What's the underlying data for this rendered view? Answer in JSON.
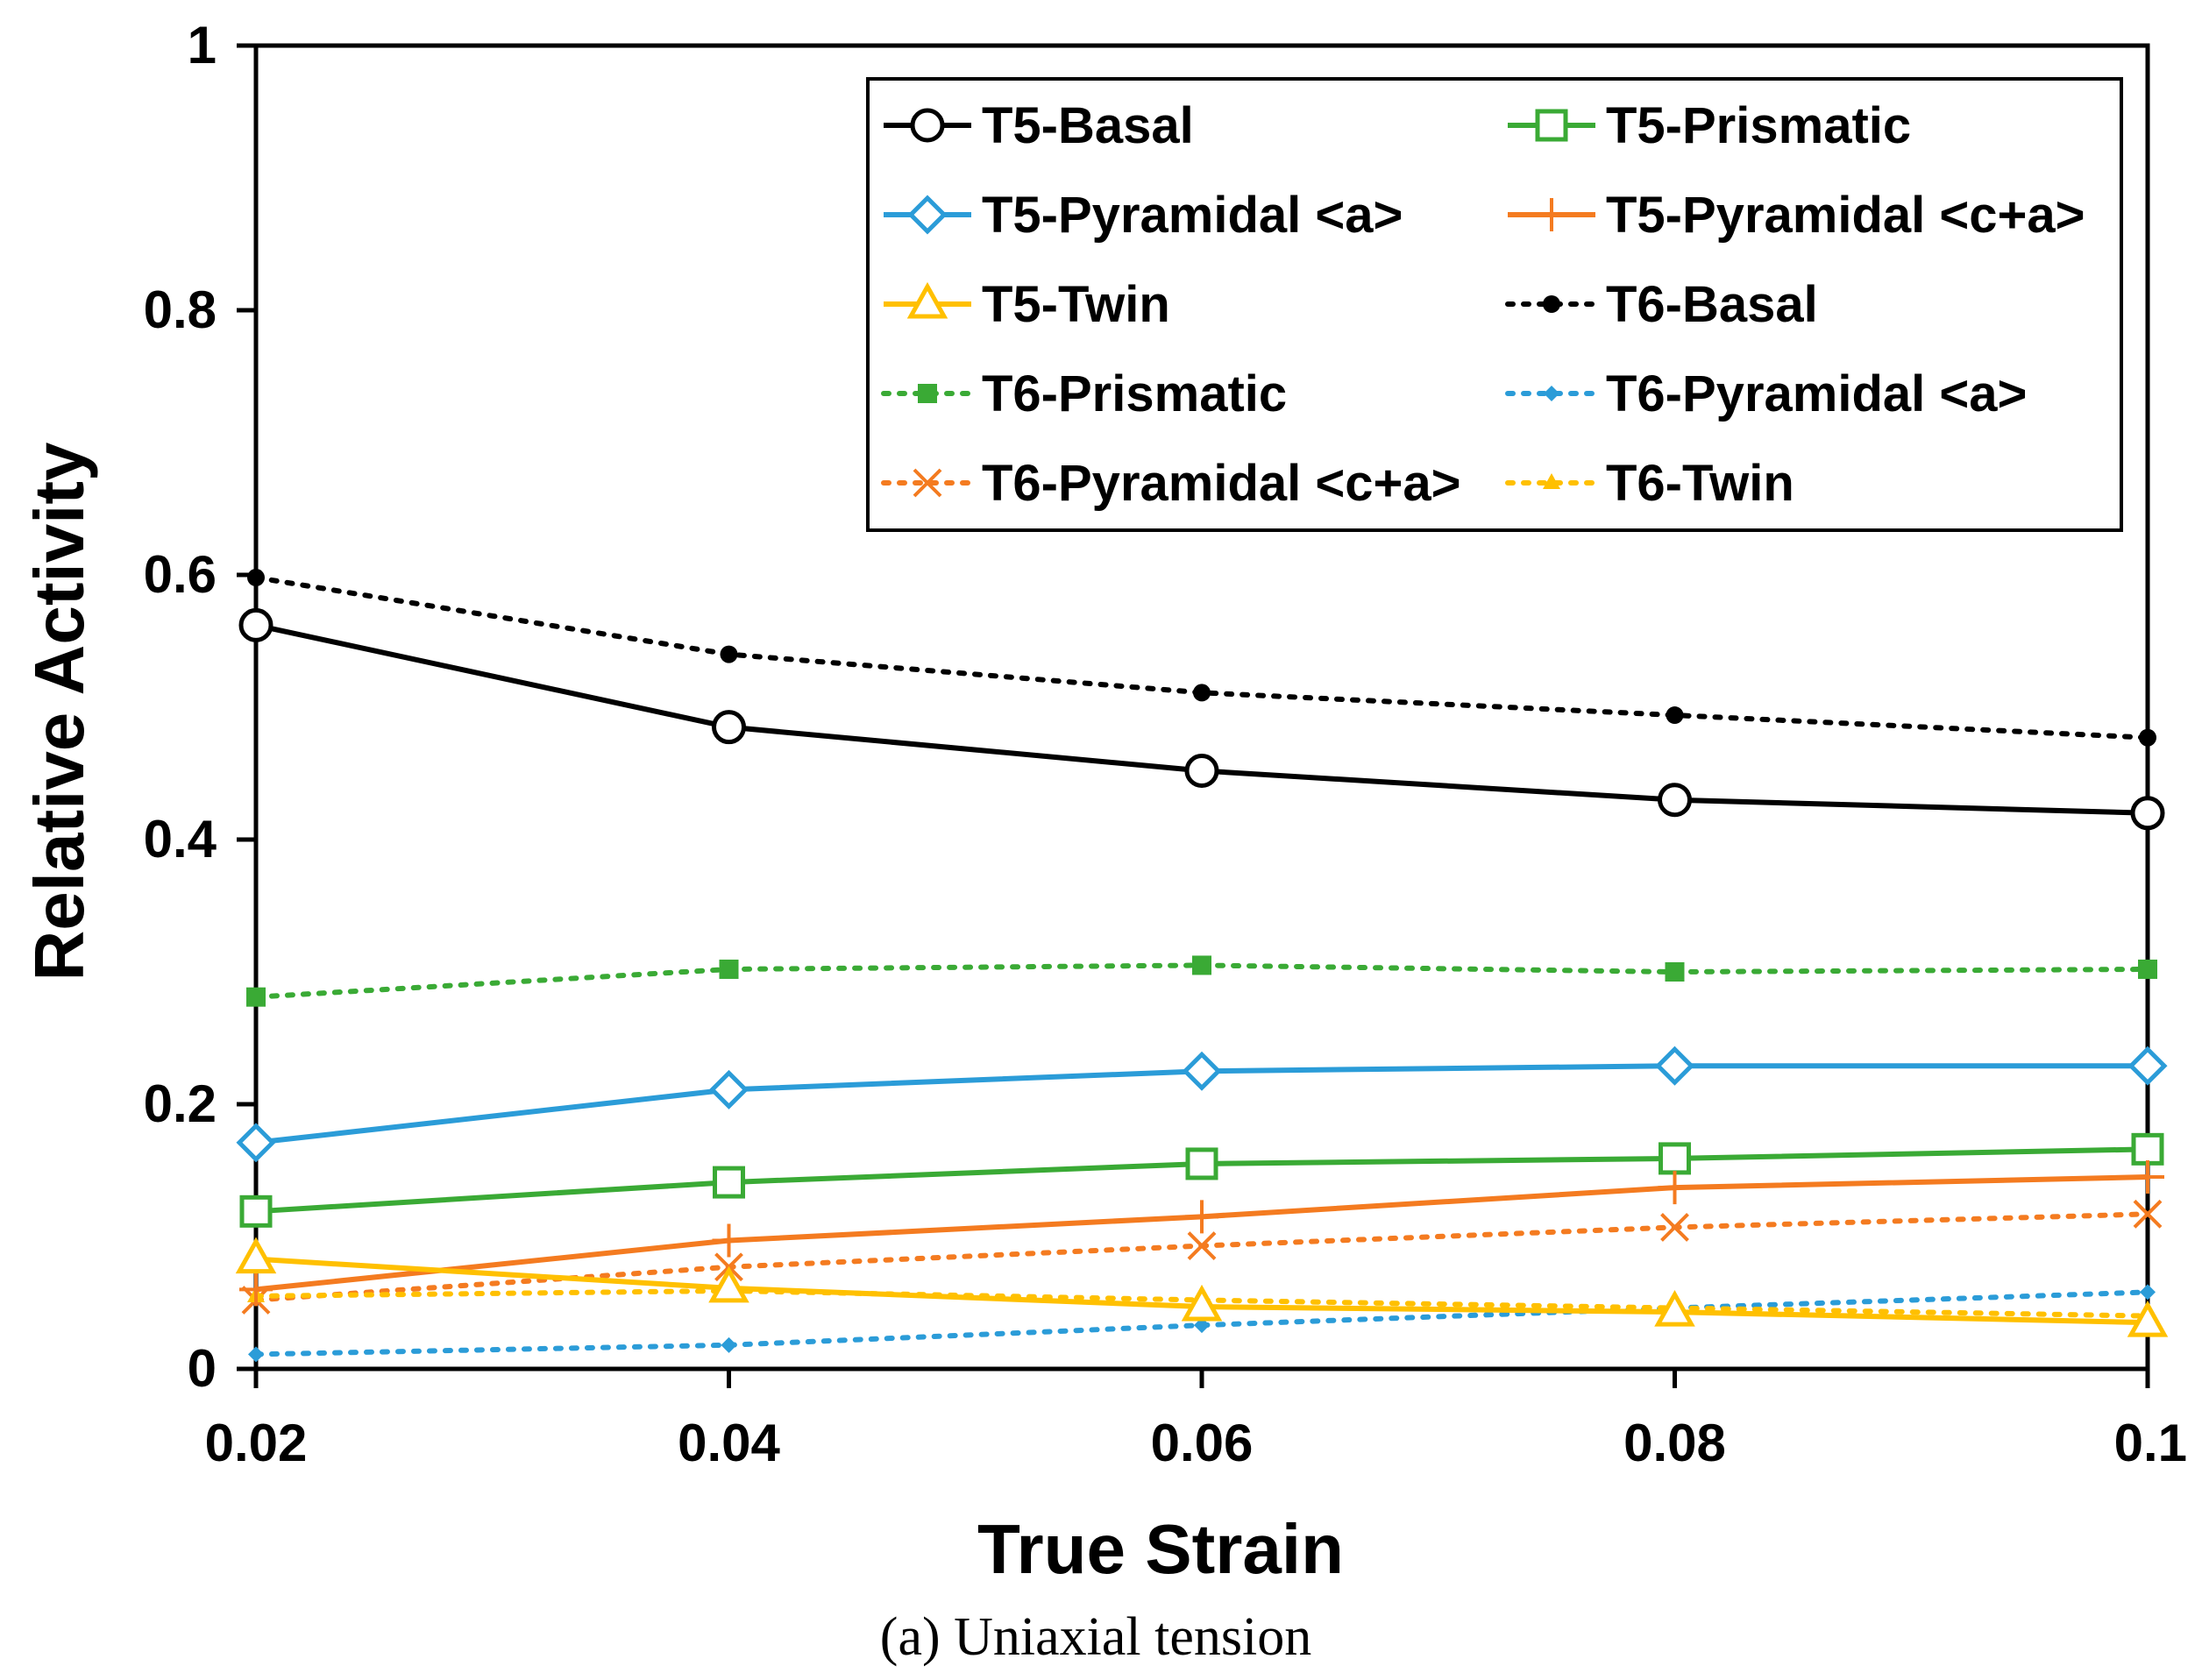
{
  "chart_data": {
    "type": "line",
    "title": "",
    "caption": "(a) Uniaxial tension",
    "xlabel": "True Strain",
    "ylabel": "Relative Activity",
    "x": [
      0.02,
      0.04,
      0.06,
      0.08,
      0.1
    ],
    "xlim": [
      0.02,
      0.1
    ],
    "ylim": [
      0,
      1
    ],
    "x_ticks": [
      "0.02",
      "0.04",
      "0.06",
      "0.08",
      "0.1"
    ],
    "y_ticks": [
      "0",
      "0.2",
      "0.4",
      "0.6",
      "0.8",
      "1"
    ],
    "grid": false,
    "legend_position": "top-right",
    "series": [
      {
        "name": "T5-Basal",
        "values": [
          0.562,
          0.485,
          0.452,
          0.43,
          0.42
        ],
        "color": "#000000",
        "dash": "solid",
        "marker": "open-circle"
      },
      {
        "name": "T5-Prismatic",
        "values": [
          0.119,
          0.141,
          0.155,
          0.159,
          0.166
        ],
        "color": "#3aaa35",
        "dash": "solid",
        "marker": "open-square"
      },
      {
        "name": "T5-Pyramidal <a>",
        "values": [
          0.171,
          0.211,
          0.225,
          0.229,
          0.229
        ],
        "color": "#2b9cd8",
        "dash": "solid",
        "marker": "open-diamond"
      },
      {
        "name": "T5-Pyramidal <c+a>",
        "values": [
          0.06,
          0.097,
          0.115,
          0.137,
          0.145
        ],
        "color": "#f47b20",
        "dash": "solid",
        "marker": "plus"
      },
      {
        "name": "T5-Twin",
        "values": [
          0.083,
          0.061,
          0.047,
          0.043,
          0.035
        ],
        "color": "#ffc000",
        "dash": "solid",
        "marker": "open-triangle"
      },
      {
        "name": "T6-Basal",
        "values": [
          0.598,
          0.54,
          0.511,
          0.494,
          0.477
        ],
        "color": "#000000",
        "dash": "dotted",
        "marker": "filled-circle"
      },
      {
        "name": "T6-Prismatic",
        "values": [
          0.281,
          0.302,
          0.305,
          0.3,
          0.302
        ],
        "color": "#3aaa35",
        "dash": "dotted",
        "marker": "filled-square"
      },
      {
        "name": "T6-Pyramidal <a>",
        "values": [
          0.011,
          0.018,
          0.033,
          0.046,
          0.058
        ],
        "color": "#2b9cd8",
        "dash": "dotted",
        "marker": "filled-diamond"
      },
      {
        "name": "T6-Pyramidal <c+a>",
        "values": [
          0.052,
          0.077,
          0.093,
          0.107,
          0.117
        ],
        "color": "#f47b20",
        "dash": "dotted",
        "marker": "cross"
      },
      {
        "name": "T6-Twin",
        "values": [
          0.055,
          0.059,
          0.052,
          0.046,
          0.04
        ],
        "color": "#ffc000",
        "dash": "dotted",
        "marker": "filled-triangle"
      }
    ]
  }
}
